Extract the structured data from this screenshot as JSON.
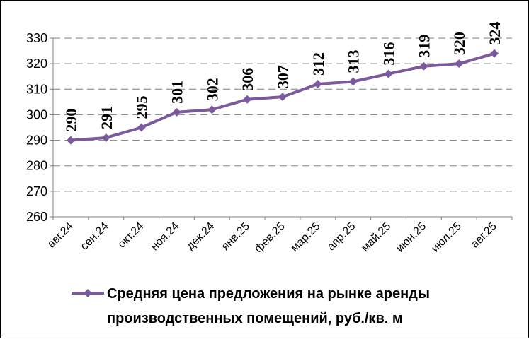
{
  "chart_data": {
    "type": "line",
    "categories": [
      "авг.24",
      "сен.24",
      "окт.24",
      "ноя.24",
      "дек.24",
      "янв.25",
      "фев.25",
      "мар.25",
      "апр.25",
      "май.25",
      "июн.25",
      "июл.25",
      "авг.25"
    ],
    "series": [
      {
        "name": "Средняя цена предложения на рынке аренды производственных помещений,  руб./кв. м",
        "name_lines": [
          "Средняя цена предложения на рынке аренды",
          "производственных помещений,  руб./кв. м"
        ],
        "values": [
          290,
          291,
          295,
          301,
          302,
          306,
          307,
          312,
          313,
          316,
          319,
          320,
          324
        ],
        "color": "#7b5a9c"
      }
    ],
    "ylim": [
      260,
      330
    ],
    "yticks": [
      "260",
      "270",
      "280",
      "290",
      "300",
      "310",
      "320",
      "330"
    ],
    "grid": "horizontal dashed",
    "legend": "bottom"
  }
}
